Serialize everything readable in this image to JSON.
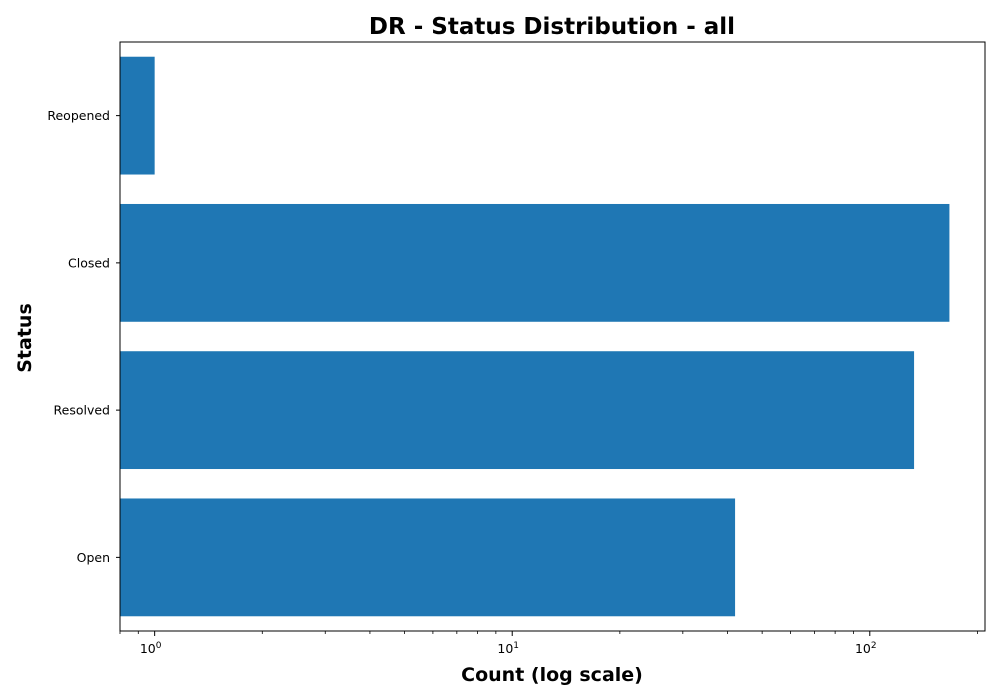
{
  "chart_data": {
    "type": "bar",
    "orientation": "horizontal",
    "title": "DR - Status Distribution - all",
    "xlabel": "Count (log scale)",
    "ylabel": "Status",
    "xscale": "log",
    "xlim": [
      0.8,
      210
    ],
    "categories": [
      "Open",
      "Resolved",
      "Closed",
      "Reopened"
    ],
    "values": [
      42,
      133,
      167,
      1
    ],
    "x_ticks": [
      {
        "value": 1,
        "base": "10",
        "exp": "0"
      },
      {
        "value": 10,
        "base": "10",
        "exp": "1"
      },
      {
        "value": 100,
        "base": "10",
        "exp": "2"
      }
    ],
    "bar_color": "#1f77b4",
    "grid": false,
    "legend": "none"
  }
}
